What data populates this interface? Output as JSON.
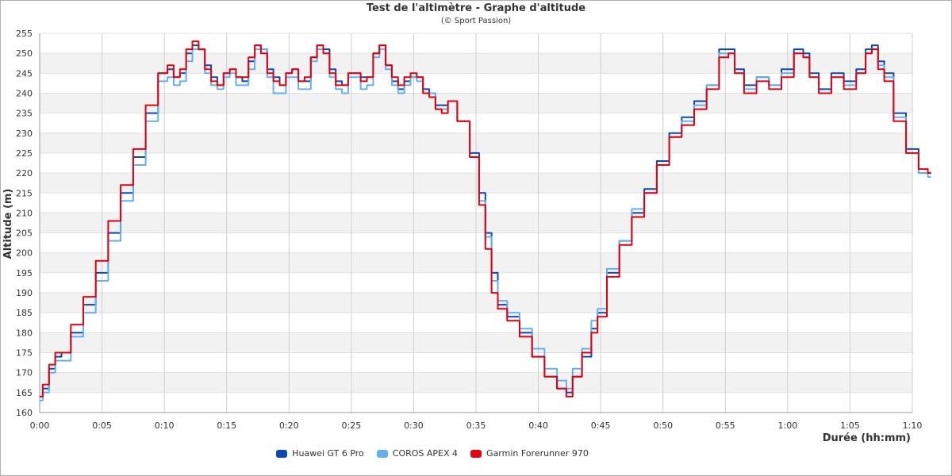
{
  "chart_data": {
    "type": "line",
    "title": "Test de l'altimètre - Graphe d'altitude",
    "subtitle": "(© Sport Passion)",
    "xlabel": "Durée (hh:mm)",
    "ylabel": "Altitude (m)",
    "xlim": [
      0,
      70
    ],
    "ylim": [
      160,
      255
    ],
    "x_unit": "minutes",
    "x_tick_labels": [
      "0:00",
      "0:05",
      "0:10",
      "0:15",
      "0:20",
      "0:25",
      "0:30",
      "0:35",
      "0:40",
      "0:45",
      "0:50",
      "0:55",
      "1:00",
      "1:05",
      "1:10"
    ],
    "y_ticks": [
      160,
      165,
      170,
      175,
      180,
      185,
      190,
      195,
      200,
      205,
      210,
      215,
      220,
      225,
      230,
      235,
      240,
      245,
      250,
      255
    ],
    "grid": true,
    "legend_position": "bottom",
    "series": [
      {
        "name": "Huawei GT 6 Pro",
        "color": "#0b47b5",
        "points": [
          [
            0,
            164
          ],
          [
            0.5,
            166
          ],
          [
            1,
            171
          ],
          [
            1.5,
            174
          ],
          [
            2,
            175
          ],
          [
            3,
            180
          ],
          [
            4,
            187
          ],
          [
            5,
            195
          ],
          [
            6,
            205
          ],
          [
            7,
            215
          ],
          [
            8,
            224
          ],
          [
            9,
            235
          ],
          [
            10,
            245
          ],
          [
            10.5,
            246
          ],
          [
            11,
            244
          ],
          [
            11.5,
            245
          ],
          [
            12,
            250
          ],
          [
            12.5,
            252
          ],
          [
            13,
            251
          ],
          [
            13.5,
            247
          ],
          [
            14,
            244
          ],
          [
            14.5,
            242
          ],
          [
            15,
            245
          ],
          [
            15.5,
            246
          ],
          [
            16,
            244
          ],
          [
            16.5,
            243
          ],
          [
            17,
            248
          ],
          [
            17.5,
            252
          ],
          [
            18,
            251
          ],
          [
            18.5,
            246
          ],
          [
            19,
            244
          ],
          [
            19.5,
            242
          ],
          [
            20,
            245
          ],
          [
            20.5,
            246
          ],
          [
            21,
            243
          ],
          [
            21.5,
            243
          ],
          [
            22,
            249
          ],
          [
            22.5,
            252
          ],
          [
            23,
            251
          ],
          [
            23.5,
            246
          ],
          [
            24,
            243
          ],
          [
            24.5,
            242
          ],
          [
            25,
            245
          ],
          [
            25.5,
            245
          ],
          [
            26,
            244
          ],
          [
            26.5,
            244
          ],
          [
            27,
            250
          ],
          [
            27.5,
            252
          ],
          [
            28,
            247
          ],
          [
            28.5,
            243
          ],
          [
            29,
            241
          ],
          [
            29.5,
            243
          ],
          [
            30,
            244
          ],
          [
            30.5,
            244
          ],
          [
            31,
            241
          ],
          [
            31.5,
            240
          ],
          [
            32,
            237
          ],
          [
            32.5,
            237
          ],
          [
            33,
            238
          ],
          [
            34,
            233
          ],
          [
            35,
            225
          ],
          [
            35.5,
            215
          ],
          [
            36,
            205
          ],
          [
            36.5,
            195
          ],
          [
            37,
            187
          ],
          [
            38,
            184
          ],
          [
            39,
            180
          ],
          [
            40,
            174
          ],
          [
            41,
            169
          ],
          [
            42,
            166
          ],
          [
            42.5,
            165
          ],
          [
            43,
            169
          ],
          [
            44,
            174
          ],
          [
            44.5,
            181
          ],
          [
            45,
            185
          ],
          [
            46,
            195
          ],
          [
            47,
            203
          ],
          [
            48,
            210
          ],
          [
            49,
            216
          ],
          [
            50,
            223
          ],
          [
            51,
            230
          ],
          [
            52,
            234
          ],
          [
            53,
            238
          ],
          [
            54,
            242
          ],
          [
            55,
            251
          ],
          [
            55.5,
            251
          ],
          [
            56,
            246
          ],
          [
            57,
            242
          ],
          [
            58,
            244
          ],
          [
            59,
            242
          ],
          [
            60,
            246
          ],
          [
            61,
            251
          ],
          [
            61.5,
            250
          ],
          [
            62,
            245
          ],
          [
            63,
            241
          ],
          [
            64,
            245
          ],
          [
            65,
            243
          ],
          [
            66,
            246
          ],
          [
            66.5,
            251
          ],
          [
            67,
            252
          ],
          [
            67.5,
            248
          ],
          [
            68,
            245
          ],
          [
            69,
            235
          ],
          [
            70,
            226
          ],
          [
            71,
            220
          ],
          [
            71.5,
            220
          ]
        ]
      },
      {
        "name": "COROS APEX 4",
        "color": "#63b0ec",
        "points": [
          [
            0,
            163
          ],
          [
            0.5,
            165
          ],
          [
            1,
            170
          ],
          [
            1.5,
            173
          ],
          [
            2,
            173
          ],
          [
            3,
            179
          ],
          [
            4,
            185
          ],
          [
            5,
            193
          ],
          [
            6,
            203
          ],
          [
            7,
            213
          ],
          [
            8,
            222
          ],
          [
            9,
            233
          ],
          [
            10,
            243
          ],
          [
            10.5,
            244
          ],
          [
            11,
            242
          ],
          [
            11.5,
            243
          ],
          [
            12,
            248
          ],
          [
            12.5,
            251
          ],
          [
            13,
            251
          ],
          [
            13.5,
            245
          ],
          [
            14,
            242
          ],
          [
            14.5,
            241
          ],
          [
            15,
            244
          ],
          [
            15.5,
            245
          ],
          [
            16,
            242
          ],
          [
            16.5,
            242
          ],
          [
            17,
            246
          ],
          [
            17.5,
            251
          ],
          [
            18,
            251
          ],
          [
            18.5,
            244
          ],
          [
            19,
            240
          ],
          [
            19.5,
            240
          ],
          [
            20,
            244
          ],
          [
            20.5,
            244
          ],
          [
            21,
            241
          ],
          [
            21.5,
            241
          ],
          [
            22,
            248
          ],
          [
            22.5,
            251
          ],
          [
            23,
            250
          ],
          [
            23.5,
            244
          ],
          [
            24,
            241
          ],
          [
            24.5,
            240
          ],
          [
            25,
            244
          ],
          [
            25.5,
            244
          ],
          [
            26,
            241
          ],
          [
            26.5,
            242
          ],
          [
            27,
            249
          ],
          [
            27.5,
            251
          ],
          [
            28,
            246
          ],
          [
            28.5,
            242
          ],
          [
            29,
            240
          ],
          [
            29.5,
            242
          ],
          [
            30,
            244
          ],
          [
            30.5,
            243
          ],
          [
            31,
            240
          ],
          [
            31.5,
            240
          ],
          [
            32,
            236
          ],
          [
            32.5,
            236
          ],
          [
            33,
            238
          ],
          [
            34,
            233
          ],
          [
            35,
            224
          ],
          [
            35.5,
            213
          ],
          [
            36,
            204
          ],
          [
            36.5,
            193
          ],
          [
            37,
            188
          ],
          [
            38,
            185
          ],
          [
            39,
            181
          ],
          [
            40,
            176
          ],
          [
            41,
            171
          ],
          [
            42,
            168
          ],
          [
            42.5,
            166
          ],
          [
            43,
            171
          ],
          [
            44,
            176
          ],
          [
            44.5,
            183
          ],
          [
            45,
            186
          ],
          [
            46,
            196
          ],
          [
            47,
            203
          ],
          [
            48,
            211
          ],
          [
            49,
            215
          ],
          [
            50,
            222
          ],
          [
            51,
            229
          ],
          [
            52,
            233
          ],
          [
            53,
            237
          ],
          [
            54,
            242
          ],
          [
            55,
            250
          ],
          [
            55.5,
            250
          ],
          [
            56,
            245
          ],
          [
            57,
            241
          ],
          [
            58,
            244
          ],
          [
            59,
            242
          ],
          [
            60,
            245
          ],
          [
            61,
            250
          ],
          [
            61.5,
            249
          ],
          [
            62,
            244
          ],
          [
            63,
            240
          ],
          [
            64,
            244
          ],
          [
            65,
            242
          ],
          [
            66,
            245
          ],
          [
            66.5,
            250
          ],
          [
            67,
            251
          ],
          [
            67.5,
            247
          ],
          [
            68,
            244
          ],
          [
            69,
            234
          ],
          [
            70,
            225
          ],
          [
            71,
            220
          ],
          [
            71.5,
            219
          ]
        ]
      },
      {
        "name": "Garmin Forerunner 970",
        "color": "#e3000f",
        "points": [
          [
            0,
            164
          ],
          [
            0.5,
            167
          ],
          [
            1,
            172
          ],
          [
            1.5,
            175
          ],
          [
            2,
            175
          ],
          [
            3,
            182
          ],
          [
            4,
            189
          ],
          [
            5,
            198
          ],
          [
            6,
            208
          ],
          [
            7,
            217
          ],
          [
            8,
            226
          ],
          [
            9,
            237
          ],
          [
            10,
            245
          ],
          [
            10.5,
            247
          ],
          [
            11,
            244
          ],
          [
            11.5,
            246
          ],
          [
            12,
            251
          ],
          [
            12.5,
            253
          ],
          [
            13,
            251
          ],
          [
            13.5,
            246
          ],
          [
            14,
            243
          ],
          [
            14.5,
            242
          ],
          [
            15,
            245
          ],
          [
            15.5,
            246
          ],
          [
            16,
            244
          ],
          [
            16.5,
            244
          ],
          [
            17,
            249
          ],
          [
            17.5,
            252
          ],
          [
            18,
            250
          ],
          [
            18.5,
            245
          ],
          [
            19,
            243
          ],
          [
            19.5,
            242
          ],
          [
            20,
            245
          ],
          [
            20.5,
            246
          ],
          [
            21,
            243
          ],
          [
            21.5,
            244
          ],
          [
            22,
            249
          ],
          [
            22.5,
            252
          ],
          [
            23,
            250
          ],
          [
            23.5,
            245
          ],
          [
            24,
            242
          ],
          [
            24.5,
            242
          ],
          [
            25,
            245
          ],
          [
            25.5,
            245
          ],
          [
            26,
            243
          ],
          [
            26.5,
            244
          ],
          [
            27,
            250
          ],
          [
            27.5,
            252
          ],
          [
            28,
            247
          ],
          [
            28.5,
            244
          ],
          [
            29,
            242
          ],
          [
            29.5,
            244
          ],
          [
            30,
            245
          ],
          [
            30.5,
            244
          ],
          [
            31,
            240
          ],
          [
            31.5,
            239
          ],
          [
            32,
            236
          ],
          [
            32.5,
            235
          ],
          [
            33,
            238
          ],
          [
            34,
            233
          ],
          [
            35,
            224
          ],
          [
            35.5,
            212
          ],
          [
            36,
            201
          ],
          [
            36.5,
            190
          ],
          [
            37,
            186
          ],
          [
            38,
            183
          ],
          [
            39,
            179
          ],
          [
            40,
            174
          ],
          [
            41,
            169
          ],
          [
            42,
            166
          ],
          [
            42.5,
            164
          ],
          [
            43,
            169
          ],
          [
            44,
            175
          ],
          [
            44.5,
            180
          ],
          [
            45,
            184
          ],
          [
            46,
            194
          ],
          [
            47,
            202
          ],
          [
            48,
            209
          ],
          [
            49,
            215
          ],
          [
            50,
            222
          ],
          [
            51,
            229
          ],
          [
            52,
            232
          ],
          [
            53,
            236
          ],
          [
            54,
            241
          ],
          [
            55,
            249
          ],
          [
            55.5,
            250
          ],
          [
            56,
            245
          ],
          [
            57,
            240
          ],
          [
            58,
            243
          ],
          [
            59,
            241
          ],
          [
            60,
            244
          ],
          [
            61,
            250
          ],
          [
            61.5,
            249
          ],
          [
            62,
            244
          ],
          [
            63,
            240
          ],
          [
            64,
            244
          ],
          [
            65,
            241
          ],
          [
            66,
            245
          ],
          [
            66.5,
            250
          ],
          [
            67,
            251
          ],
          [
            67.5,
            246
          ],
          [
            68,
            243
          ],
          [
            69,
            233
          ],
          [
            70,
            225
          ],
          [
            71,
            221
          ],
          [
            71.5,
            220
          ]
        ]
      }
    ]
  }
}
